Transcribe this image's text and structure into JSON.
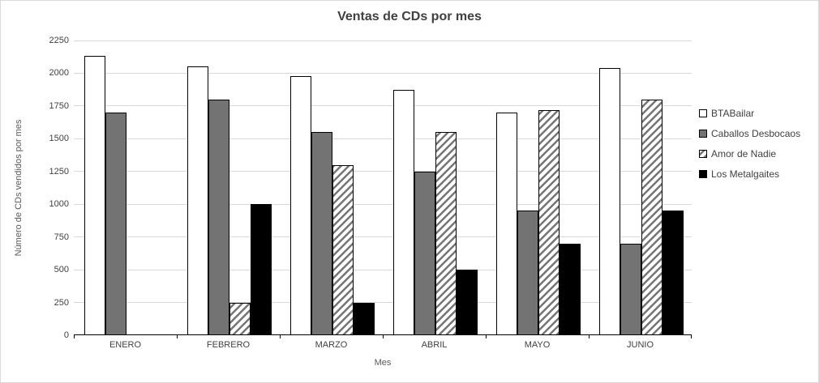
{
  "chart": {
    "title": "Ventas de CDs por mes",
    "x_axis_title": "Mes",
    "y_axis_title": "Número de CDs vendidos por mes"
  },
  "chart_data": {
    "type": "bar",
    "title": "Ventas de CDs por mes",
    "xlabel": "Mes",
    "ylabel": "Número de CDs vendidos por mes",
    "categories": [
      "ENERO",
      "FEBRERO",
      "MARZO",
      "ABRIL",
      "MAYO",
      "JUNIO"
    ],
    "series": [
      {
        "name": "BTABailar",
        "fill": "white",
        "values": [
          2130,
          2050,
          1980,
          1875,
          1700,
          2040
        ]
      },
      {
        "name": "Caballos Desbocaos",
        "fill": "gray",
        "values": [
          1700,
          1800,
          1550,
          1250,
          950,
          700
        ]
      },
      {
        "name": "Amor de Nadie",
        "fill": "hatch",
        "values": [
          0,
          250,
          1300,
          1550,
          1720,
          1800
        ]
      },
      {
        "name": "Los Metalgaites",
        "fill": "black",
        "values": [
          0,
          1000,
          250,
          500,
          700,
          950
        ]
      }
    ],
    "ylim": [
      0,
      2250
    ],
    "ytick_step": 250,
    "ytick_labels": [
      "0",
      "250",
      "500",
      "750",
      "1000",
      "1250",
      "1500",
      "1750",
      "2000",
      "2250"
    ],
    "grid": "horizontal",
    "legend_position": "right"
  },
  "colors": {
    "title_text": "#404040",
    "axis_text": "#404040",
    "axis_title_text": "#595959",
    "legend_text": "#404040",
    "gridline": "#d9d9d9",
    "axis_line": "#000000",
    "bar_border": "#000000",
    "series_white": "#ffffff",
    "series_gray": "#737373",
    "series_hatch_stripe": "#757575",
    "series_black": "#000000",
    "chart_border": "#d9d9d9",
    "background": "#ffffff"
  }
}
